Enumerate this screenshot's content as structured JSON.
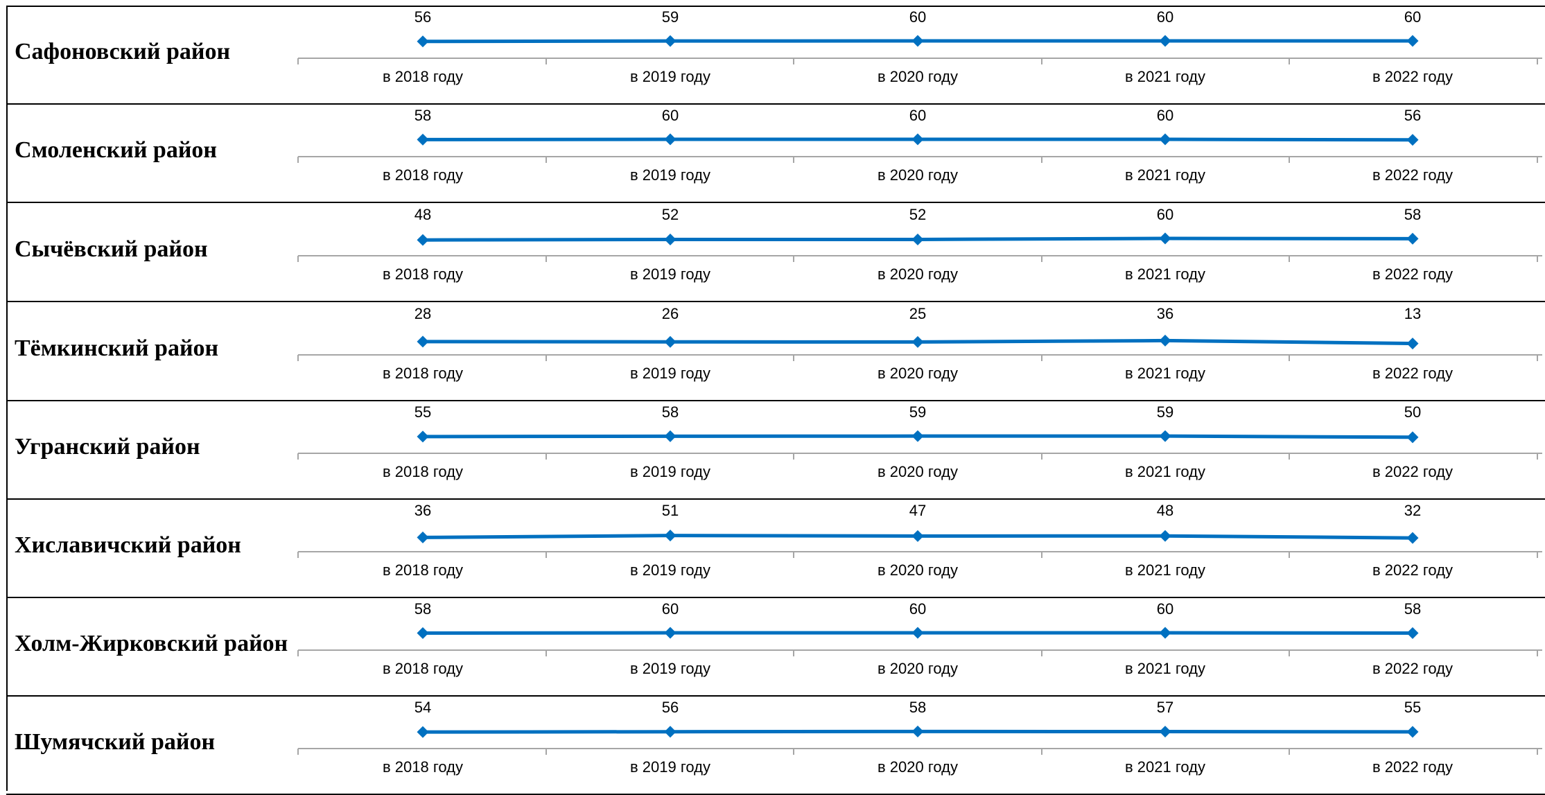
{
  "colors": {
    "line": "#0070C0",
    "axis": "#A6A6A6",
    "border": "#000000"
  },
  "chart_data": [
    {
      "type": "line",
      "title": "Сафоновский район",
      "categories": [
        "в 2018 году",
        "в 2019 году",
        "в 2020 году",
        "в 2021 году",
        "в 2022 году"
      ],
      "values": [
        56,
        59,
        60,
        60,
        60
      ]
    },
    {
      "type": "line",
      "title": "Смоленский район",
      "categories": [
        "в 2018 году",
        "в 2019 году",
        "в 2020 году",
        "в 2021 году",
        "в 2022 году"
      ],
      "values": [
        58,
        60,
        60,
        60,
        56
      ]
    },
    {
      "type": "line",
      "title": "Сычёвский район",
      "categories": [
        "в 2018 году",
        "в 2019 году",
        "в 2020 году",
        "в 2021 году",
        "в 2022 году"
      ],
      "values": [
        48,
        52,
        52,
        60,
        58
      ]
    },
    {
      "type": "line",
      "title": "Тёмкинский район",
      "categories": [
        "в 2018 году",
        "в 2019 году",
        "в 2020 году",
        "в 2021 году",
        "в 2022 году"
      ],
      "values": [
        28,
        26,
        25,
        36,
        13
      ]
    },
    {
      "type": "line",
      "title": "Угранский район",
      "categories": [
        "в 2018 году",
        "в 2019 году",
        "в 2020 году",
        "в 2021 году",
        "в 2022 году"
      ],
      "values": [
        55,
        58,
        59,
        59,
        50
      ]
    },
    {
      "type": "line",
      "title": "Хиславичский район",
      "categories": [
        "в 2018 году",
        "в 2019 году",
        "в 2020 году",
        "в 2021 году",
        "в 2022 году"
      ],
      "values": [
        36,
        51,
        47,
        48,
        32
      ]
    },
    {
      "type": "line",
      "title": "Холм-Жирковский район",
      "categories": [
        "в 2018 году",
        "в 2019 году",
        "в 2020 году",
        "в 2021 году",
        "в 2022 году"
      ],
      "values": [
        58,
        60,
        60,
        60,
        58
      ]
    },
    {
      "type": "line",
      "title": "Шумячский район",
      "categories": [
        "в 2018 году",
        "в 2019 году",
        "в 2020 году",
        "в 2021 году",
        "в 2022 году"
      ],
      "values": [
        54,
        56,
        58,
        57,
        55
      ]
    }
  ]
}
